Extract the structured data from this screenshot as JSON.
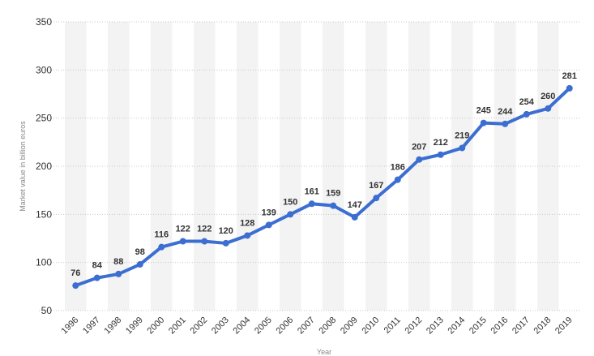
{
  "chart_data": {
    "type": "line",
    "title": "",
    "xlabel": "Year",
    "ylabel": "Market value in billion euros",
    "ylim": [
      50,
      350
    ],
    "yticks": [
      50,
      100,
      150,
      200,
      250,
      300,
      350
    ],
    "grid": true,
    "x": [
      "1996",
      "1997",
      "1998",
      "1999",
      "2000",
      "2001",
      "2002",
      "2003",
      "2004",
      "2005",
      "2006",
      "2007",
      "2008",
      "2009",
      "2010",
      "2011",
      "2012",
      "2013",
      "2014",
      "2015",
      "2016",
      "2017",
      "2018",
      "2019"
    ],
    "series": [
      {
        "values": [
          76,
          84,
          88,
          98,
          116,
          122,
          122,
          120,
          128,
          139,
          150,
          161,
          159,
          147,
          167,
          186,
          207,
          212,
          219,
          245,
          244,
          254,
          260,
          281
        ],
        "color": "#3c6ed2"
      }
    ]
  }
}
